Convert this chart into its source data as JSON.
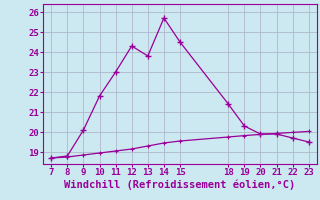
{
  "xlabel": "Windchill (Refroidissement éolien,°C)",
  "background_color": "#cce8f0",
  "grid_color": "#b0b8cc",
  "line_color": "#990099",
  "line1": {
    "x": [
      7,
      8,
      9,
      10,
      11,
      12,
      13,
      14,
      15,
      18,
      19,
      20,
      21,
      22,
      23
    ],
    "y": [
      18.7,
      18.8,
      20.1,
      21.8,
      23.0,
      24.3,
      23.8,
      25.7,
      24.5,
      21.4,
      20.3,
      19.9,
      19.9,
      19.7,
      19.5
    ]
  },
  "line2": {
    "x": [
      7,
      8,
      9,
      10,
      11,
      12,
      13,
      14,
      15,
      18,
      19,
      20,
      21,
      22,
      23
    ],
    "y": [
      18.7,
      18.75,
      18.85,
      18.95,
      19.05,
      19.15,
      19.3,
      19.45,
      19.55,
      19.75,
      19.82,
      19.88,
      19.93,
      19.98,
      20.03
    ]
  },
  "xlim": [
    6.5,
    23.5
  ],
  "ylim": [
    18.4,
    26.4
  ],
  "xticks": [
    7,
    8,
    9,
    10,
    11,
    12,
    13,
    14,
    15,
    18,
    19,
    20,
    21,
    22,
    23
  ],
  "yticks": [
    19,
    20,
    21,
    22,
    23,
    24,
    25,
    26
  ],
  "xlabel_fontsize": 7.5,
  "tick_fontsize": 6.5
}
